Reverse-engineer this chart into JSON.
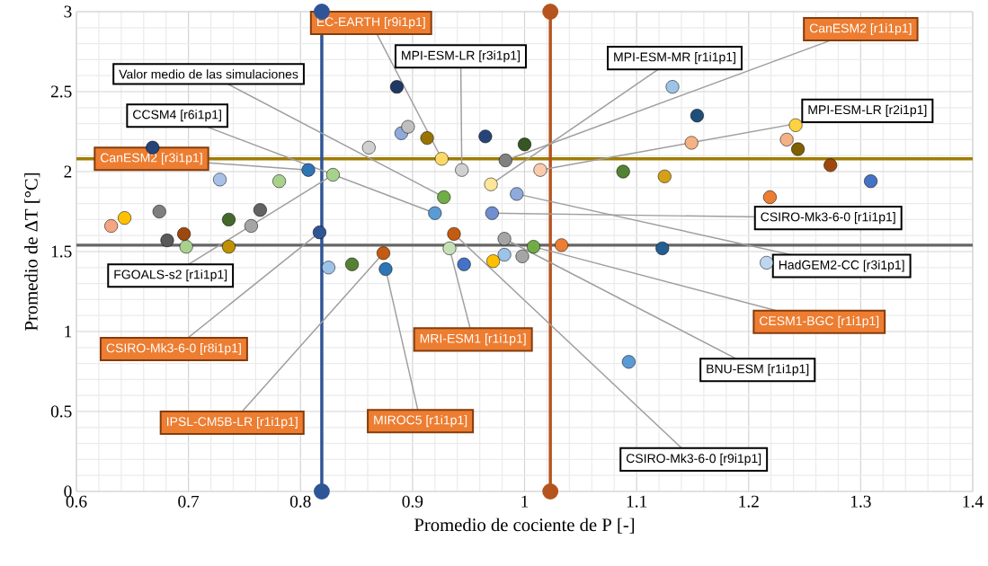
{
  "chart_data": {
    "type": "scatter",
    "xlabel": "Promedio de cociente de P [-]",
    "ylabel": "Promedio de ΔT [°C]",
    "xlim": [
      0.6,
      1.4
    ],
    "ylim": [
      0,
      3
    ],
    "xticks": [
      0.6,
      0.7,
      0.8,
      0.9,
      1,
      1.1,
      1.2,
      1.3,
      1.4
    ],
    "yticks": [
      0,
      0.5,
      1,
      1.5,
      2,
      2.5,
      3
    ],
    "grid": true,
    "marker": "circle",
    "series": [
      {
        "type": "line",
        "x": [
          0.819,
          0.819
        ],
        "values": [
          0,
          3
        ],
        "color": "#2f5597"
      },
      {
        "type": "line",
        "x": [
          1.023,
          1.023
        ],
        "values": [
          0,
          3
        ],
        "color": "#b5541e"
      },
      {
        "x": [
          0.631,
          0.643,
          0.668,
          0.674,
          0.681,
          0.696,
          0.698,
          0.728,
          0.736,
          0.736,
          0.756,
          0.764,
          0.781,
          0.807,
          0.829,
          0.817,
          0.825,
          0.846,
          0.874,
          0.876,
          0.886,
          0.89,
          0.896,
          0.913,
          0.926,
          0.944,
          0.928,
          0.92,
          0.965,
          1.0,
          0.983,
          0.97,
          1.014,
          0.993,
          0.971,
          0.937,
          0.933,
          0.946,
          0.972,
          0.982,
          0.982,
          0.998,
          1.008,
          1.033,
          1.132,
          1.154,
          1.088,
          1.125,
          1.123,
          1.149,
          1.242,
          1.234,
          1.244,
          1.273,
          1.309,
          1.219,
          1.216,
          1.093,
          0.861
        ],
        "values": [
          1.66,
          1.71,
          2.15,
          1.75,
          1.57,
          1.61,
          1.53,
          1.95,
          1.7,
          1.53,
          1.66,
          1.76,
          1.94,
          2.01,
          1.98,
          1.62,
          1.4,
          1.42,
          1.49,
          1.39,
          2.53,
          2.24,
          2.28,
          2.21,
          2.08,
          2.01,
          1.84,
          1.74,
          2.22,
          2.17,
          2.07,
          1.92,
          2.01,
          1.86,
          1.74,
          1.61,
          1.52,
          1.42,
          1.44,
          1.48,
          1.58,
          1.47,
          1.53,
          1.54,
          2.53,
          2.35,
          2.0,
          1.97,
          1.52,
          2.18,
          2.29,
          2.2,
          2.14,
          2.04,
          1.94,
          1.84,
          1.43,
          0.81,
          2.15
        ],
        "colors": [
          "#f4a582",
          "#ffc000",
          "#264478",
          "#7f7f7f",
          "#595959",
          "#9e480e",
          "#a9d18e",
          "#a9c0e8",
          "#43682b",
          "#bf9000",
          "#a5a5a5",
          "#636363",
          "#a9d18e",
          "#2e75b6",
          "#a9d18e",
          "#2f5597",
          "#9dc3e6",
          "#548235",
          "#c55a11",
          "#2e75b6",
          "#1f3864",
          "#8faadc",
          "#bfbfbf",
          "#997300",
          "#ffd966",
          "#d0d0d0",
          "#70ad47",
          "#5b9bd5",
          "#264478",
          "#375623",
          "#808080",
          "#ffe699",
          "#f8cbad",
          "#8faadc",
          "#6f8fd0",
          "#c55a11",
          "#c5e0b4",
          "#4472c4",
          "#ffc000",
          "#9dc3e6",
          "#a5a5a5",
          "#a5a5a5",
          "#70ad47",
          "#ed7d31",
          "#9dc3e6",
          "#1f4e79",
          "#548235",
          "#d4a017",
          "#255e91",
          "#f4b183",
          "#ffd23f",
          "#f4b183",
          "#7f6000",
          "#9e480e",
          "#4472c4",
          "#ed7d31",
          "#bdd7ee",
          "#5b9bd5",
          "#d0d0d0"
        ]
      }
    ],
    "ref_lines": [
      {
        "axis": "y",
        "value": 2.08,
        "color": "#a07c00"
      },
      {
        "axis": "y",
        "value": 1.54,
        "color": "#666666"
      }
    ],
    "annotations": [
      {
        "text": "EC-EARTH [r9i1p1]",
        "x": 0.926,
        "y": 2.08
      },
      {
        "text": "MPI-ESM-LR [r3i1p1]",
        "x": 0.944,
        "y": 2.01
      },
      {
        "text": "Valor medio de las simulaciones",
        "x": 0.928,
        "y": 1.84
      },
      {
        "text": "CCSM4 [r6i1p1]",
        "x": 0.92,
        "y": 1.74
      },
      {
        "text": "CanESM2 [r3i1p1]",
        "x": 0.807,
        "y": 2.01
      },
      {
        "text": "FGOALS-s2 [r1i1p1]",
        "x": 0.829,
        "y": 1.98
      },
      {
        "text": "CSIRO-Mk3-6-0 [r8i1p1]",
        "x": 0.817,
        "y": 1.62
      },
      {
        "text": "IPSL-CM5B-LR [r1i1p1]",
        "x": 0.874,
        "y": 1.49
      },
      {
        "text": "MIROC5 [r1i1p1]",
        "x": 0.876,
        "y": 1.39
      },
      {
        "text": "MRI-ESM1 [r1i1p1]",
        "x": 0.933,
        "y": 1.52
      },
      {
        "text": "CSIRO-Mk3-6-0 [r9i1p1]",
        "x": 0.937,
        "y": 1.61
      },
      {
        "text": "BNU-ESM [r1i1p1]",
        "x": 0.982,
        "y": 1.58
      },
      {
        "text": "CESM1-BGC [r1i1p1]",
        "x": 1.008,
        "y": 1.53
      },
      {
        "text": "HadGEM2-CC [r3i1p1]",
        "x": 0.993,
        "y": 1.86
      },
      {
        "text": "CSIRO-Mk3-6-0 [r1i1p1]",
        "x": 0.971,
        "y": 1.74
      },
      {
        "text": "MPI-ESM-LR [r2i1p1]",
        "x": 1.014,
        "y": 2.01
      },
      {
        "text": "MPI-ESM-MR [r1i1p1]",
        "x": 0.97,
        "y": 1.92
      },
      {
        "text": "CanESM2 [r1i1p1]",
        "x": 0.983,
        "y": 2.07
      }
    ]
  }
}
